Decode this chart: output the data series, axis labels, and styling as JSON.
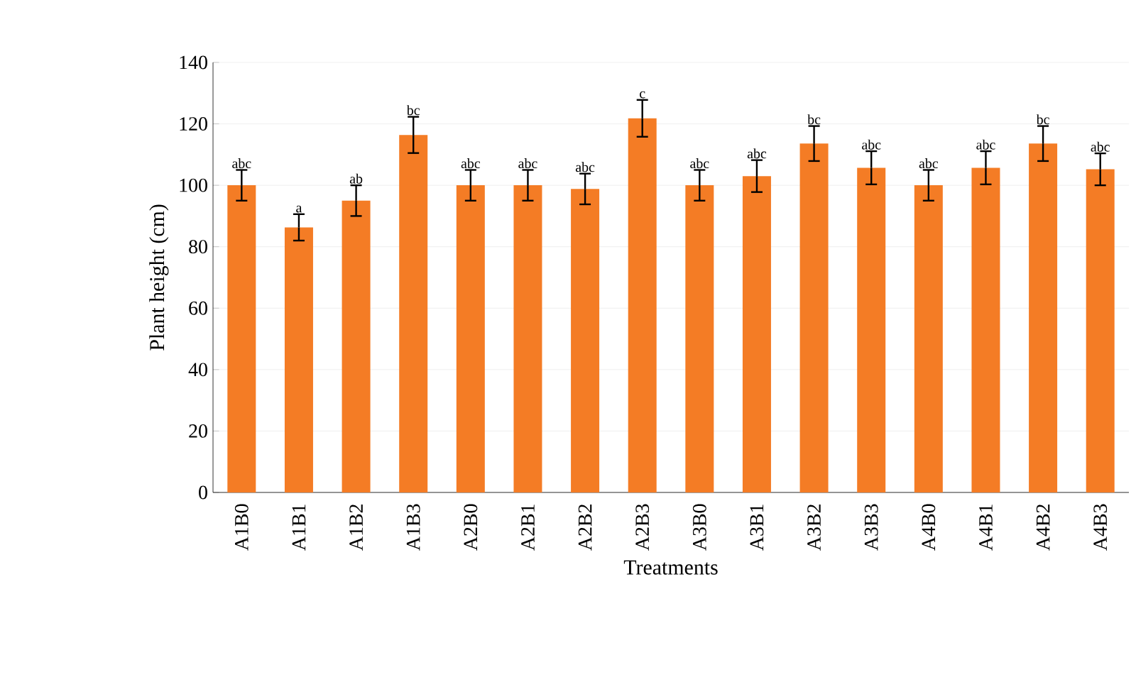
{
  "chart_data": {
    "type": "bar",
    "xlabel": "Treatments",
    "ylabel": "Plant height (cm)",
    "categories": [
      "A1B0",
      "A1B1",
      "A1B2",
      "A1B3",
      "A2B0",
      "A2B1",
      "A2B2",
      "A2B3",
      "A3B0",
      "A3B1",
      "A3B2",
      "A3B3",
      "A4B0",
      "A4B1",
      "A4B2",
      "A4B3"
    ],
    "values": [
      100,
      86.3,
      95,
      116.4,
      100,
      100,
      98.8,
      121.8,
      100,
      103,
      113.6,
      105.7,
      100,
      105.7,
      113.6,
      105.2
    ],
    "errors": [
      5,
      4.3,
      5,
      5.9,
      5,
      5,
      5,
      6,
      5,
      5.2,
      5.7,
      5.4,
      5,
      5.4,
      5.7,
      5.2
    ],
    "color": "#f47c25",
    "ylim": [
      0,
      140
    ],
    "yticks": [
      0,
      20,
      40,
      60,
      80,
      100,
      120,
      140
    ],
    "grid": "y",
    "annotations": [
      {
        "text": "abc",
        "x": "A1B0",
        "y": 105
      },
      {
        "text": "a",
        "x": "A1B1",
        "y": 90.6
      },
      {
        "text": "ab",
        "x": "A1B2",
        "y": 100
      },
      {
        "text": "bc",
        "x": "A1B3",
        "y": 122.3
      },
      {
        "text": "abc",
        "x": "A2B0",
        "y": 105
      },
      {
        "text": "abc",
        "x": "A2B1",
        "y": 105
      },
      {
        "text": "abc",
        "x": "A2B2",
        "y": 103.8
      },
      {
        "text": "c",
        "x": "A2B3",
        "y": 127.8
      },
      {
        "text": "abc",
        "x": "A3B0",
        "y": 105
      },
      {
        "text": "abc",
        "x": "A3B1",
        "y": 108.2
      },
      {
        "text": "bc",
        "x": "A3B2",
        "y": 119.3
      },
      {
        "text": "abc",
        "x": "A3B3",
        "y": 111.1
      },
      {
        "text": "abc",
        "x": "A4B0",
        "y": 105
      },
      {
        "text": "abc",
        "x": "A4B1",
        "y": 111.1
      },
      {
        "text": "bc",
        "x": "A4B2",
        "y": 119.3
      },
      {
        "text": "abc",
        "x": "A4B3",
        "y": 110.4
      }
    ]
  }
}
